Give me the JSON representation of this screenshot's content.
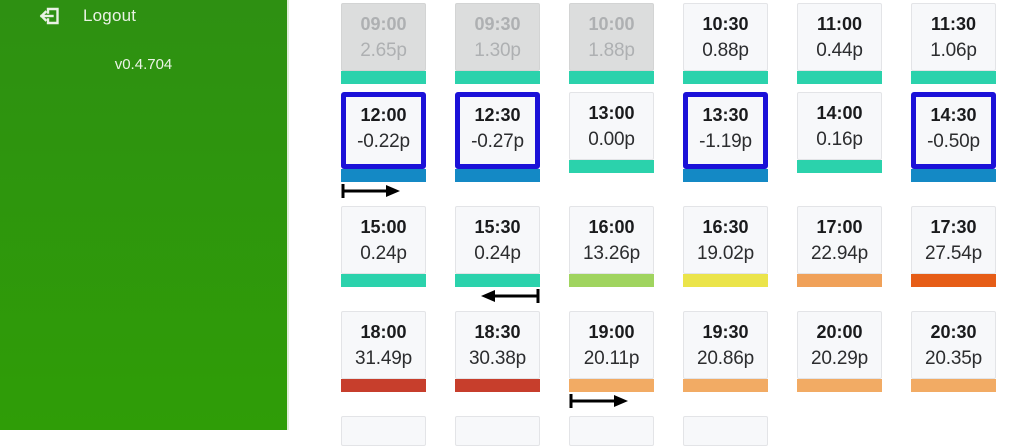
{
  "sidebar": {
    "logout_label": "Logout",
    "version": "v0.4.704"
  },
  "colors": {
    "sidebar_top": "#2e9012",
    "sidebar_bottom": "#2f9d07",
    "sidebar_text": "#e9f2e4",
    "selected_border": "#1b11d8",
    "negative_price_bar": "#1489c5",
    "low_price_bar": "#2bd2ac",
    "marker_color": "#000000"
  },
  "grid": {
    "columns": 6,
    "tiles": [
      {
        "time": "09:00",
        "price": "2.65p",
        "state": "past",
        "bar": "#2bd2ac",
        "marker": null
      },
      {
        "time": "09:30",
        "price": "1.30p",
        "state": "past",
        "bar": "#2bd2ac",
        "marker": null
      },
      {
        "time": "10:00",
        "price": "1.88p",
        "state": "past",
        "bar": "#2bd2ac",
        "marker": null
      },
      {
        "time": "10:30",
        "price": "0.88p",
        "state": "normal",
        "bar": "#2bd2ac",
        "marker": null
      },
      {
        "time": "11:00",
        "price": "0.44p",
        "state": "normal",
        "bar": "#2bd2ac",
        "marker": null
      },
      {
        "time": "11:30",
        "price": "1.06p",
        "state": "normal",
        "bar": "#2bd2ac",
        "marker": null
      },
      {
        "time": "12:00",
        "price": "-0.22p",
        "state": "selected",
        "bar": "#1489c5",
        "marker": "start"
      },
      {
        "time": "12:30",
        "price": "-0.27p",
        "state": "selected",
        "bar": "#1489c5",
        "marker": null
      },
      {
        "time": "13:00",
        "price": "0.00p",
        "state": "normal",
        "bar": "#2bd2ac",
        "marker": null
      },
      {
        "time": "13:30",
        "price": "-1.19p",
        "state": "selected",
        "bar": "#1489c5",
        "marker": null
      },
      {
        "time": "14:00",
        "price": "0.16p",
        "state": "normal",
        "bar": "#2bd2ac",
        "marker": null
      },
      {
        "time": "14:30",
        "price": "-0.50p",
        "state": "selected",
        "bar": "#1489c5",
        "marker": null
      },
      {
        "time": "15:00",
        "price": "0.24p",
        "state": "normal",
        "bar": "#2bd2ac",
        "marker": null
      },
      {
        "time": "15:30",
        "price": "0.24p",
        "state": "normal",
        "bar": "#2bd2ac",
        "marker": "end"
      },
      {
        "time": "16:00",
        "price": "13.26p",
        "state": "normal",
        "bar": "#a0d45f",
        "marker": null
      },
      {
        "time": "16:30",
        "price": "19.02p",
        "state": "normal",
        "bar": "#ebe44a",
        "marker": null
      },
      {
        "time": "17:00",
        "price": "22.94p",
        "state": "normal",
        "bar": "#f0a159",
        "marker": null
      },
      {
        "time": "17:30",
        "price": "27.54p",
        "state": "normal",
        "bar": "#e65d17",
        "marker": null
      },
      {
        "time": "18:00",
        "price": "31.49p",
        "state": "normal",
        "bar": "#c73e2c",
        "marker": null
      },
      {
        "time": "18:30",
        "price": "30.38p",
        "state": "normal",
        "bar": "#c73e2c",
        "marker": null
      },
      {
        "time": "19:00",
        "price": "20.11p",
        "state": "normal",
        "bar": "#f2ab64",
        "marker": "start"
      },
      {
        "time": "19:30",
        "price": "20.86p",
        "state": "normal",
        "bar": "#f2ab64",
        "marker": null
      },
      {
        "time": "20:00",
        "price": "20.29p",
        "state": "normal",
        "bar": "#f2ab64",
        "marker": null
      },
      {
        "time": "20:30",
        "price": "20.35p",
        "state": "normal",
        "bar": "#f2ab64",
        "marker": null
      },
      {
        "time": "",
        "price": "",
        "state": "stub",
        "bar": null,
        "marker": null
      },
      {
        "time": "",
        "price": "",
        "state": "stub",
        "bar": null,
        "marker": null
      },
      {
        "time": "",
        "price": "",
        "state": "stub",
        "bar": null,
        "marker": null
      },
      {
        "time": "",
        "price": "",
        "state": "stub",
        "bar": null,
        "marker": null
      }
    ]
  }
}
